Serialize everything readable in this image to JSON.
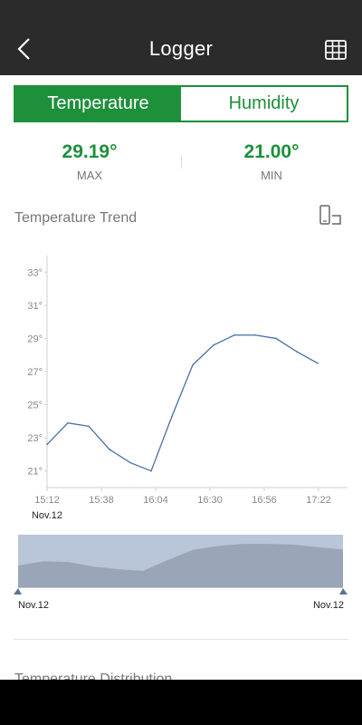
{
  "header": {
    "title": "Logger",
    "back_icon": "chevron-left-icon",
    "table_icon": "table-grid-icon"
  },
  "tabs": [
    {
      "label": "Temperature",
      "active": true
    },
    {
      "label": "Humidity",
      "active": false
    }
  ],
  "stats": {
    "max": {
      "value": "29.19°",
      "label": "MAX"
    },
    "min": {
      "value": "21.00°",
      "label": "MIN"
    }
  },
  "trend": {
    "title": "Temperature Trend",
    "rotate_icon": "rotate-screen-icon"
  },
  "chart_data": {
    "type": "line",
    "ylim": [
      20,
      34
    ],
    "y_ticks": [
      "33°",
      "31°",
      "29°",
      "27°",
      "25°",
      "23°",
      "21°"
    ],
    "y_tick_values": [
      33,
      31,
      29,
      27,
      25,
      23,
      21
    ],
    "x_ticks": [
      "15:12",
      "15:38",
      "16:04",
      "16:30",
      "16:56",
      "17:22"
    ],
    "x_date_label": "Nov.12",
    "x_minutes": [
      0,
      10,
      20,
      30,
      40,
      50,
      60,
      70,
      80,
      90,
      100,
      110,
      120,
      130
    ],
    "values": [
      22.6,
      23.9,
      23.7,
      22.3,
      21.5,
      21.0,
      24.3,
      27.4,
      28.6,
      29.2,
      29.2,
      29.0,
      28.2,
      27.5
    ],
    "grid": false,
    "series": [
      {
        "values": [
          22.6,
          23.9,
          23.7,
          22.3,
          21.5,
          21.0,
          24.3,
          27.4,
          28.6,
          29.2,
          29.2,
          29.0,
          28.2,
          27.5
        ]
      }
    ]
  },
  "range_selector": {
    "start_label": "Nov.12",
    "end_label": "Nov.12"
  },
  "distribution": {
    "title": "Temperature Distribution"
  },
  "colors": {
    "accent": "#1e8f3a",
    "line": "#4a6fa5",
    "range_bg": "#b9c6d9",
    "range_area": "#9aa6b8"
  }
}
